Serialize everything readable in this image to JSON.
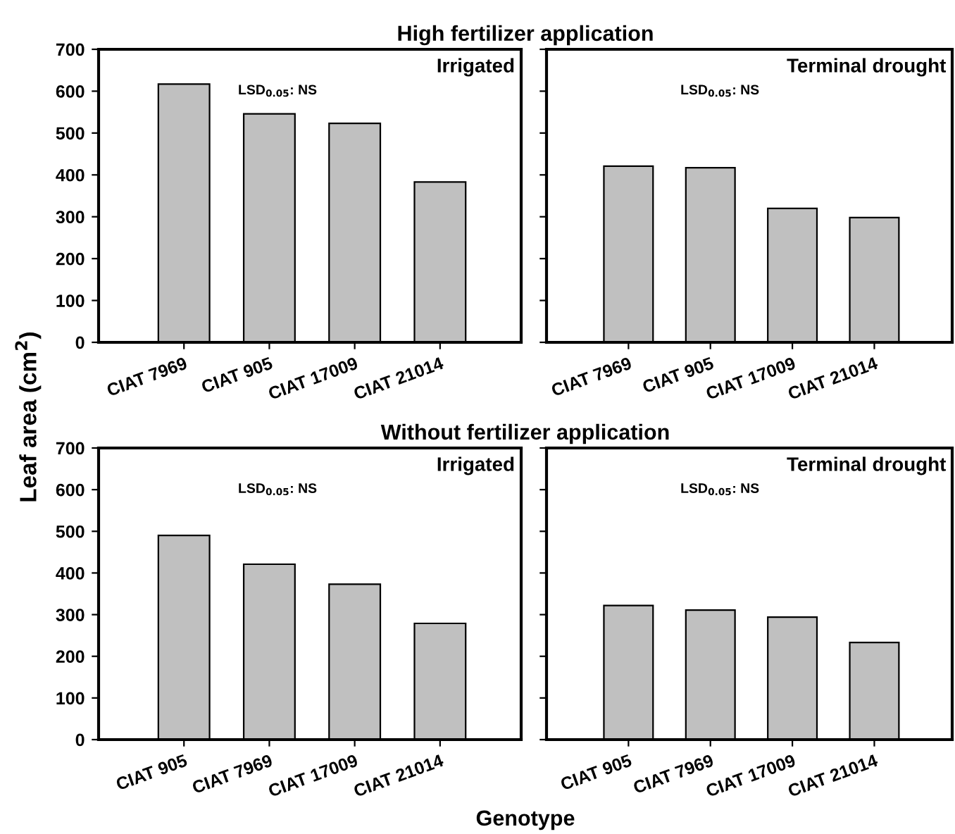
{
  "chart_data": [
    {
      "type": "bar",
      "title": "High fertilizer application",
      "ylabel": "Leaf area (cm$^{2}$)",
      "annotations": [
        "Irrigated",
        "LSD$_{0.05}$: NS"
      ],
      "categories": [
        "CIAT 7969",
        "CIAT 905",
        "CIAT 17009",
        "CIAT 21014"
      ],
      "values": [
        617,
        546,
        523,
        383
      ],
      "color": "#c0c0c0",
      "ylim": [
        0,
        700
      ],
      "yticks": [
        0,
        100,
        200,
        300,
        400,
        500,
        600,
        700
      ],
      "grid": false
    },
    {
      "type": "bar",
      "annotations": [
        "Terminal drought",
        "LSD$_{0.05}$: NS"
      ],
      "categories": [
        "CIAT 7969",
        "CIAT 905",
        "CIAT 17009",
        "CIAT 21014"
      ],
      "values": [
        421,
        417,
        320,
        298
      ],
      "color": "#c0c0c0",
      "ylim": [
        0,
        700
      ],
      "yticks": [
        0,
        100,
        200,
        300,
        400,
        500,
        600,
        700
      ],
      "tick_labels": "x",
      "grid": false
    },
    {
      "type": "bar",
      "title": "Without fertilizer application",
      "xlabel": "Genotype",
      "annotations": [
        "Irrigated",
        "LSD$_{0.05}$: NS"
      ],
      "categories": [
        "CIAT 905",
        "CIAT 7969",
        "CIAT 17009",
        "CIAT 21014"
      ],
      "values": [
        490,
        421,
        373,
        279
      ],
      "color": "#c0c0c0",
      "ylim": [
        0,
        700
      ],
      "yticks": [
        0,
        100,
        200,
        300,
        400,
        500,
        600,
        700
      ],
      "grid": false
    },
    {
      "type": "bar",
      "annotations": [
        "Terminal drought",
        "LSD$_{0.05}$: NS"
      ],
      "categories": [
        "CIAT 905",
        "CIAT 7969",
        "CIAT 17009",
        "CIAT 21014"
      ],
      "values": [
        322,
        311,
        294,
        233
      ],
      "color": "#c0c0c0",
      "ylim": [
        0,
        700
      ],
      "yticks": [
        0,
        100,
        200,
        300,
        400,
        500,
        600,
        700
      ],
      "tick_labels": "x",
      "grid": false
    }
  ]
}
